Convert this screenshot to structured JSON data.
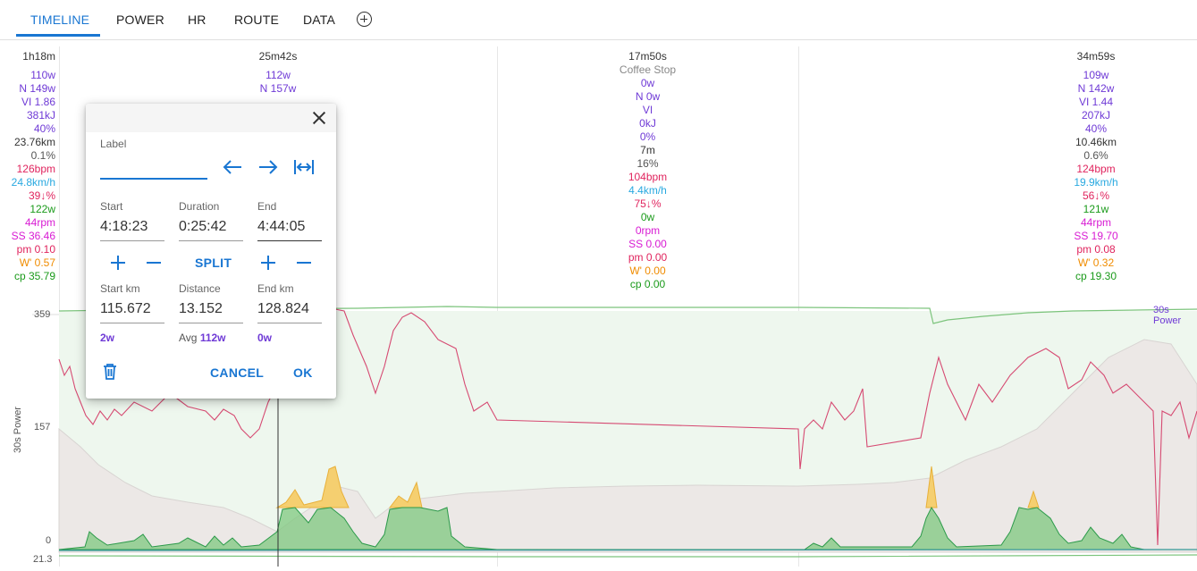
{
  "tabs": [
    {
      "label": "TIMELINE",
      "active": true
    },
    {
      "label": "POWER"
    },
    {
      "label": "HR"
    },
    {
      "label": "ROUTE"
    },
    {
      "label": "DATA"
    }
  ],
  "totals": {
    "duration": "1h18m",
    "avg_power": "110w",
    "np": "N 149w",
    "vi": "VI 1.86",
    "work": "381kJ",
    "intensity": "40%",
    "distance": "23.76km",
    "gradient": "0.1%",
    "hr": "126bpm",
    "speed": "24.8km/h",
    "hr_pct": "39↓%",
    "cp_power": "122w",
    "cadence": "44rpm",
    "ss": "SS 36.46",
    "pm": "pm 0.10",
    "wprime": "W' 0.57",
    "cp": "cp 35.79"
  },
  "segments": [
    {
      "duration": "25m42s",
      "label": "",
      "lines": [
        "112w",
        "N 157w"
      ]
    },
    {
      "duration": "17m50s",
      "label": "Coffee Stop",
      "lines": [
        "0w",
        "N 0w",
        "VI",
        "0kJ",
        "0%",
        "7m",
        "16%",
        "104bpm",
        "4.4km/h",
        "75↓%",
        "0w",
        "0rpm",
        "SS 0.00",
        "pm 0.00",
        "W' 0.00",
        "cp 0.00"
      ]
    },
    {
      "duration": "34m59s",
      "label": "",
      "lines": [
        "109w",
        "N 142w",
        "VI 1.44",
        "207kJ",
        "40%",
        "10.46km",
        "0.6%",
        "124bpm",
        "19.9km/h",
        "56↓%",
        "121w",
        "44rpm",
        "SS 19.70",
        "pm 0.08",
        "W' 0.32",
        "cp 19.30"
      ]
    }
  ],
  "chart": {
    "y_top": "359",
    "y_mid": "157",
    "y_zero": "0",
    "y_bottom": "21.3",
    "axis_title": "30s Power",
    "series_label": "30s Power"
  },
  "dialog": {
    "label_caption": "Label",
    "label_value": "",
    "start_caption": "Start",
    "start_value": "4:18:23",
    "duration_caption": "Duration",
    "duration_value": "0:25:42",
    "end_caption": "End",
    "end_value": "4:44:05",
    "split_label": "SPLIT",
    "start_km_caption": "Start km",
    "start_km_value": "115.672",
    "distance_caption": "Distance",
    "distance_value": "13.152",
    "end_km_caption": "End km",
    "end_km_value": "128.824",
    "start_power": "2w",
    "avg_caption": "Avg",
    "avg_power": "112w",
    "end_power": "0w",
    "cancel_label": "CANCEL",
    "ok_label": "OK"
  },
  "colors": {
    "accent": "#1976d2",
    "power": "#6f3ad6",
    "hr": "#e0245e"
  }
}
